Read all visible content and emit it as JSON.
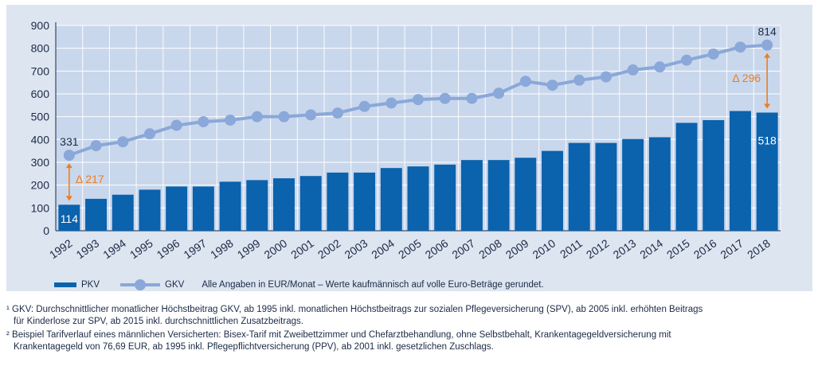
{
  "chart_data": {
    "type": "bar+line",
    "categories": [
      "1992",
      "1993",
      "1994",
      "1995",
      "1996",
      "1997",
      "1998",
      "1999",
      "2000",
      "2001",
      "2002",
      "2003",
      "2004",
      "2005",
      "2006",
      "2007",
      "2008",
      "2009",
      "2010",
      "2011",
      "2012",
      "2013",
      "2014",
      "2015",
      "2016",
      "2017",
      "2018"
    ],
    "series": [
      {
        "name": "PKV",
        "type": "bar",
        "color": "#0b62ad",
        "values": [
          114,
          140,
          158,
          180,
          194,
          194,
          215,
          222,
          230,
          240,
          255,
          255,
          275,
          282,
          290,
          310,
          310,
          320,
          350,
          385,
          385,
          402,
          410,
          473,
          485,
          525,
          518
        ]
      },
      {
        "name": "GKV",
        "type": "line",
        "color": "#8aa8d9",
        "values": [
          331,
          373,
          390,
          425,
          462,
          478,
          485,
          500,
          500,
          508,
          516,
          545,
          560,
          575,
          580,
          580,
          603,
          655,
          638,
          660,
          675,
          705,
          718,
          748,
          775,
          805,
          814
        ]
      }
    ],
    "ylim": [
      0,
      900
    ],
    "yticks": [
      0,
      100,
      200,
      300,
      400,
      500,
      600,
      700,
      800,
      900
    ],
    "grid": true,
    "data_labels": {
      "gkv_first": "331",
      "gkv_last": "814",
      "pkv_first": "114",
      "pkv_last": "518"
    },
    "annotations": {
      "delta_first": "Δ 217",
      "delta_last": "Δ 296"
    },
    "annotation_color": "#f07d1e"
  },
  "legend": {
    "pkv_label": "PKV",
    "gkv_label": "GKV",
    "note": "Alle Angaben in EUR/Monat – Werte kaufmännisch auf volle Euro-Beträge gerundet."
  },
  "footnotes": {
    "f1_line1": "¹ GKV: Durchschnittlicher monatlicher Höchstbeitrag GKV, ab 1995 inkl. monatlichen Höchstbeitrags zur sozialen Pflegeversicherung (SPV), ab 2005 inkl. erhöhten Beitrags",
    "f1_line2": "für Kinderlose zur SPV, ab 2015 inkl. durchschnittlichen Zusatzbeitrags.",
    "f2_line1": "² Beispiel Tarifverlauf eines männlichen Versicherten: Bisex-Tarif mit Zweibettzimmer und Chefarztbehandlung, ohne Selbstbehalt, Krankentagegeldversicherung mit",
    "f2_line2": "Krankentagegeld von 76,69 EUR, ab 1995 inkl. Pflegepflichtversicherung (PPV), ab 2001 inkl. gesetzlichen Zuschlags."
  }
}
